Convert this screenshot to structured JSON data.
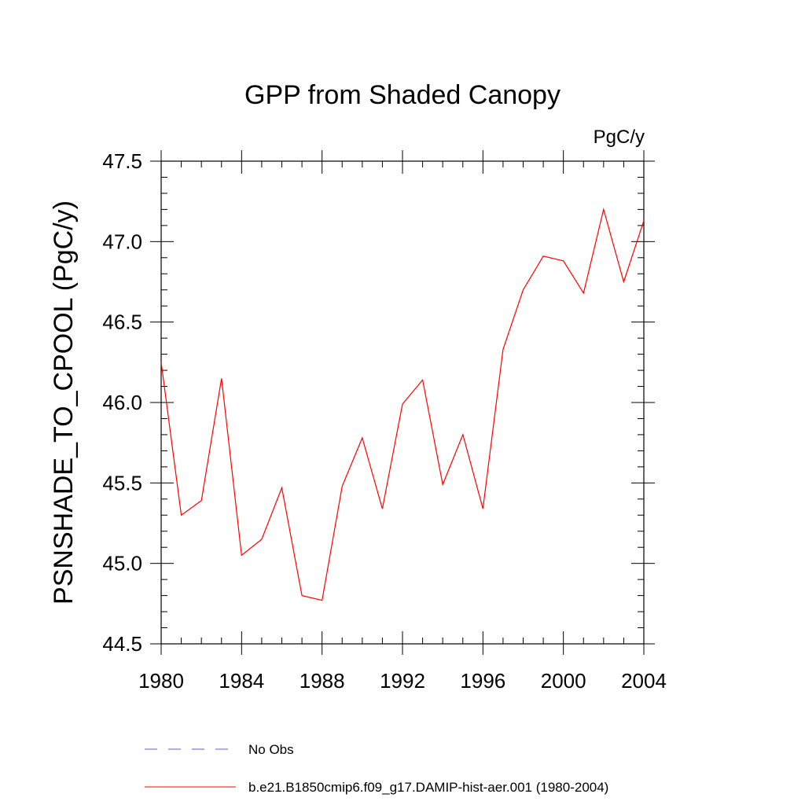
{
  "chart_data": {
    "type": "line",
    "title": "GPP from Shaded Canopy",
    "units_label": "PgC/y",
    "ylabel": "PSNSHADE_TO_CPOOL  (PgC/y)",
    "xlabel": "",
    "xlim": [
      1980,
      2004
    ],
    "ylim": [
      44.5,
      47.5
    ],
    "x_ticks": [
      1980,
      1984,
      1988,
      1992,
      1996,
      2000,
      2004
    ],
    "x_tick_labels": [
      "1980",
      "1984",
      "1988",
      "1992",
      "1996",
      "2000",
      "2004"
    ],
    "y_ticks": [
      44.5,
      45.0,
      45.5,
      46.0,
      46.5,
      47.0,
      47.5
    ],
    "y_tick_labels": [
      "44.5",
      "45.0",
      "45.5",
      "46.0",
      "46.5",
      "47.0",
      "47.5"
    ],
    "grid": false,
    "legend_position": "bottom",
    "series": [
      {
        "name": "b.e21.B1850cmip6.f09_g17.DAMIP-hist-aer.001 (1980-2004)",
        "color": "#ff0000",
        "style": "solid",
        "x": [
          1980,
          1981,
          1982,
          1983,
          1984,
          1985,
          1986,
          1987,
          1988,
          1989,
          1990,
          1991,
          1992,
          1993,
          1994,
          1995,
          1996,
          1997,
          1998,
          1999,
          2000,
          2001,
          2002,
          2003,
          2004
        ],
        "y": [
          46.25,
          45.3,
          45.39,
          46.15,
          45.05,
          45.15,
          45.47,
          44.8,
          44.77,
          45.48,
          45.78,
          45.34,
          45.99,
          46.14,
          45.49,
          45.8,
          45.34,
          46.33,
          46.7,
          46.91,
          46.88,
          46.68,
          47.2,
          46.75,
          47.13
        ]
      }
    ],
    "legend": [
      {
        "label": "No Obs",
        "color": "#5b5bd6",
        "style": "dashed"
      },
      {
        "label": "b.e21.B1850cmip6.f09_g17.DAMIP-hist-aer.001 (1980-2004)",
        "color": "#ff0000",
        "style": "solid"
      }
    ]
  }
}
